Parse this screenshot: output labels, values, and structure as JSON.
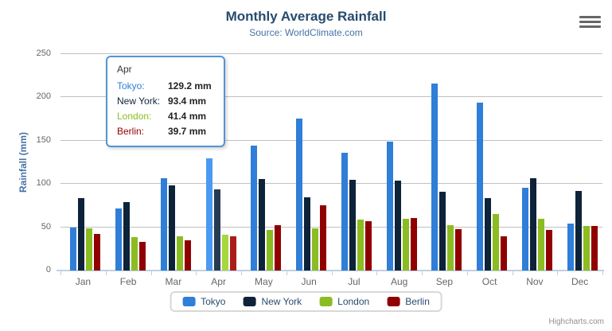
{
  "theme": {
    "title_color": "#274b6d",
    "subtitle_color": "#4572a7",
    "axis_label_color": "#666666",
    "grid_color": "#c0c0c0",
    "axis_line_color": "#c0d0e0",
    "legend_text_color": "#274b6d",
    "credits_color": "#909090",
    "tooltip_border": "#5294d6"
  },
  "chart_data": {
    "type": "bar",
    "title": "Monthly Average Rainfall",
    "subtitle": "Source: WorldClimate.com",
    "categories": [
      "Jan",
      "Feb",
      "Mar",
      "Apr",
      "May",
      "Jun",
      "Jul",
      "Aug",
      "Sep",
      "Oct",
      "Nov",
      "Dec"
    ],
    "series": [
      {
        "name": "Tokyo",
        "color": "#2f7ed8",
        "hover_color": "#4a99f3",
        "values": [
          49.9,
          71.5,
          106.4,
          129.2,
          144.0,
          176.0,
          135.6,
          148.5,
          216.4,
          194.1,
          95.6,
          54.4
        ]
      },
      {
        "name": "New York",
        "color": "#0d233a",
        "hover_color": "#263c53",
        "values": [
          83.6,
          78.8,
          98.5,
          93.4,
          106.0,
          84.5,
          105.0,
          104.3,
          91.2,
          83.5,
          106.6,
          92.3
        ]
      },
      {
        "name": "London",
        "color": "#8bbc21",
        "hover_color": "#a6d73c",
        "values": [
          48.9,
          38.8,
          39.3,
          41.4,
          47.0,
          48.3,
          59.0,
          59.6,
          52.4,
          65.2,
          59.3,
          51.2
        ]
      },
      {
        "name": "Berlin",
        "color": "#910000",
        "hover_color": "#ac1b1b",
        "values": [
          42.4,
          33.2,
          34.5,
          39.7,
          52.6,
          75.5,
          57.4,
          60.4,
          47.6,
          39.1,
          46.8,
          51.1
        ]
      }
    ],
    "xlabel": "",
    "ylabel": "Rainfall (mm)",
    "ylim": [
      0,
      250
    ],
    "ytick_step": 50,
    "grid": true,
    "legend_position": "bottom",
    "hovered_category": "Apr",
    "hovered_category_index": 3
  },
  "tooltip": {
    "header": "Apr",
    "rows": [
      {
        "label": "Tokyo:",
        "value": "129.2 mm",
        "color": "#2f7ed8"
      },
      {
        "label": "New York:",
        "value": "93.4 mm",
        "color": "#0d233a"
      },
      {
        "label": "London:",
        "value": "41.4 mm",
        "color": "#8bbc21"
      },
      {
        "label": "Berlin:",
        "value": "39.7 mm",
        "color": "#910000"
      }
    ]
  },
  "credits": "Highcharts.com"
}
